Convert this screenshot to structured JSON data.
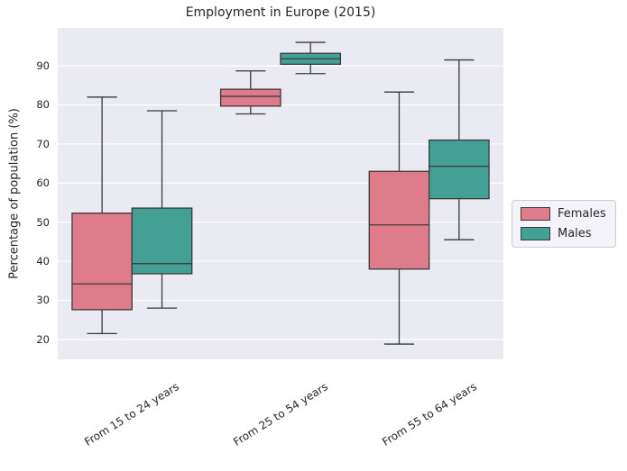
{
  "title": "Employment in Europe (2015)",
  "chart_data": {
    "type": "box",
    "title": "Employment in Europe (2015)",
    "ylabel": "Percentage of population (%)",
    "xlabel": "",
    "categories": [
      "From 15 to 24 years",
      "From 25 to 54 years",
      "From 55 to 64 years"
    ],
    "yticks": [
      20,
      30,
      40,
      50,
      60,
      70,
      80,
      90
    ],
    "ylim": [
      14.9,
      99.7
    ],
    "grid": "horizontal white gridlines on lavender background",
    "background_color": "#eaeaf2",
    "gridline_color": "#ffffff",
    "box_edge_color": "#3a3a3a",
    "legend_position": "center right, outside axes",
    "series": [
      {
        "name": "Females",
        "color": "#df7c8c",
        "boxes": [
          {
            "whislo": 21.5,
            "q1": 27.6,
            "med": 34.2,
            "q3": 52.3,
            "whishi": 82.0
          },
          {
            "whislo": 77.7,
            "q1": 79.7,
            "med": 82.2,
            "q3": 84.0,
            "whishi": 88.7
          },
          {
            "whislo": 18.8,
            "q1": 38.0,
            "med": 49.3,
            "q3": 63.0,
            "whishi": 83.3
          }
        ]
      },
      {
        "name": "Males",
        "color": "#42a095",
        "boxes": [
          {
            "whislo": 28.0,
            "q1": 36.8,
            "med": 39.4,
            "q3": 53.6,
            "whishi": 78.5
          },
          {
            "whislo": 88.0,
            "q1": 90.4,
            "med": 91.8,
            "q3": 93.2,
            "whishi": 96.0
          },
          {
            "whislo": 45.5,
            "q1": 56.0,
            "med": 64.3,
            "q3": 71.0,
            "whishi": 91.5
          }
        ]
      }
    ]
  }
}
